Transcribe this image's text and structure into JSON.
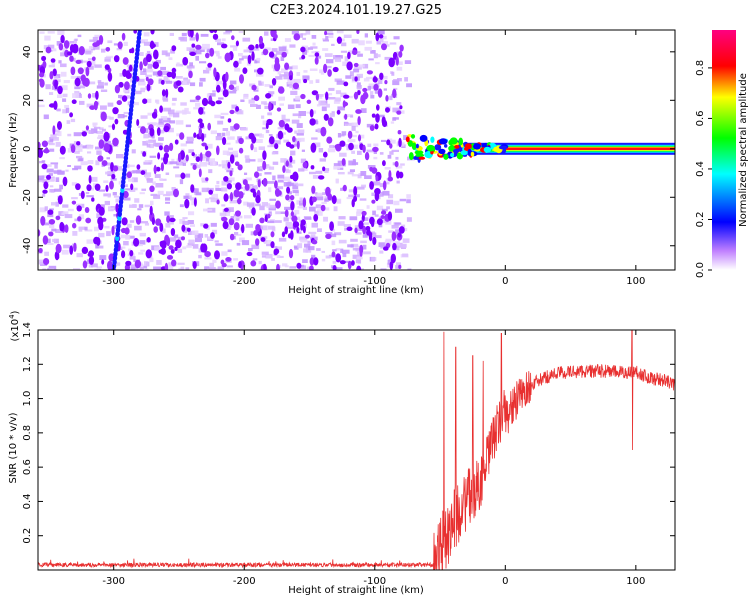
{
  "title": "C2E3.2024.101.19.27.G25",
  "chart_data": [
    {
      "type": "heatmap",
      "xlabel": "Height of straight line (km)",
      "ylabel": "Frequency (Hz)",
      "xlim": [
        -358,
        130
      ],
      "ylim": [
        -50,
        49
      ],
      "xticks": [
        -300,
        -200,
        -100,
        0,
        100
      ],
      "yticks": [
        -40,
        -20,
        0,
        20,
        40
      ],
      "noise_region_x": [
        -358,
        -75
      ],
      "track_x": [
        -300,
        -280
      ],
      "track_y": [
        -50,
        49
      ],
      "signal_x": [
        -75,
        130
      ],
      "signal_y": 0,
      "colorbar": {
        "label": "Normalized spectral amplitude",
        "ticks": [
          "0.0",
          "0.2",
          "0.4",
          "0.6",
          "0.8"
        ],
        "range": [
          0,
          0.95
        ]
      },
      "colors": [
        "#d9b3ff",
        "#7b00ff",
        "#0000ff",
        "#00ffff",
        "#00ff00",
        "#ffff00",
        "#ff0000",
        "#ff0080"
      ]
    },
    {
      "type": "line",
      "xlabel": "Height of straight line (km)",
      "ylabel": "SNR (10 * v/v)",
      "y_multiplier": "(x10",
      "y_multiplier_exp": "4",
      "y_multiplier_close": ")",
      "xlim": [
        -358,
        130
      ],
      "ylim": [
        0,
        1.4
      ],
      "xticks": [
        -300,
        -200,
        -100,
        0,
        100
      ],
      "yticks": [
        0.2,
        0.4,
        0.6,
        0.8,
        1.0,
        1.2,
        1.4
      ],
      "ytick_labels": [
        "0.2",
        "0.4",
        "0.6",
        "0.8",
        "1.0",
        "1.2",
        "1.4"
      ],
      "color": "#e83030",
      "anchors": [
        [
          -358,
          0.03
        ],
        [
          -200,
          0.03
        ],
        [
          -100,
          0.03
        ],
        [
          -55,
          0.03
        ],
        [
          -50,
          0.1
        ],
        [
          -45,
          0.2
        ],
        [
          -40,
          0.28
        ],
        [
          -35,
          0.35
        ],
        [
          -30,
          0.4
        ],
        [
          -25,
          0.45
        ],
        [
          -20,
          0.5
        ],
        [
          -15,
          0.6
        ],
        [
          -10,
          0.75
        ],
        [
          -5,
          0.85
        ],
        [
          0,
          0.9
        ],
        [
          5,
          0.95
        ],
        [
          10,
          1.0
        ],
        [
          15,
          1.05
        ],
        [
          20,
          1.08
        ],
        [
          30,
          1.12
        ],
        [
          40,
          1.15
        ],
        [
          60,
          1.16
        ],
        [
          80,
          1.16
        ],
        [
          90,
          1.15
        ],
        [
          100,
          1.16
        ],
        [
          110,
          1.12
        ],
        [
          120,
          1.11
        ],
        [
          130,
          1.08
        ]
      ],
      "spikes": [
        [
          -47,
          1.39
        ],
        [
          -38,
          1.3
        ],
        [
          -25,
          1.25
        ],
        [
          -17,
          1.22
        ],
        [
          -3,
          1.38
        ],
        [
          -1,
          1.05
        ],
        [
          97,
          1.4
        ],
        [
          97.5,
          0.7
        ]
      ]
    }
  ]
}
